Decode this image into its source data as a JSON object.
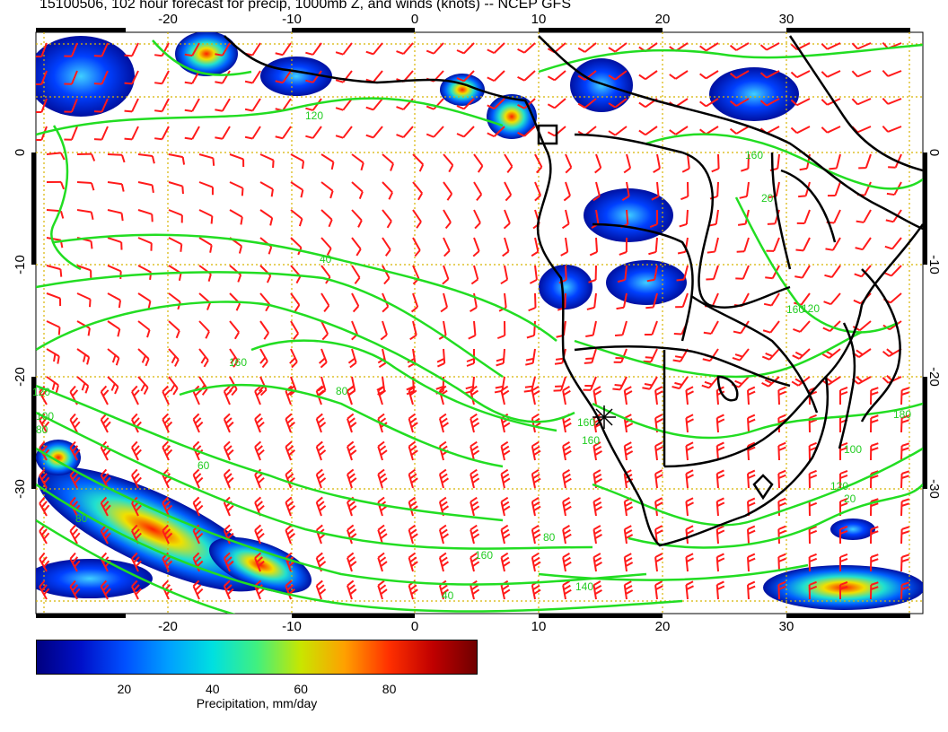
{
  "title": "15100506, 102 hour forecast for precip, 1000mb Z, and winds (knots) -- NCEP GFS",
  "map": {
    "lon_ticks": [
      "-20",
      "-10",
      "0",
      "10",
      "20",
      "30"
    ],
    "lat_ticks": [
      "0",
      "-10",
      "-20",
      "-30"
    ],
    "contour_labels": [
      "120",
      "40",
      "160",
      "80",
      "120",
      "100",
      "80",
      "60",
      "160",
      "160",
      "120",
      "80",
      "80",
      "160",
      "140",
      "40",
      "120",
      "100",
      "180",
      "160",
      "160",
      "20",
      "20"
    ],
    "colors": {
      "contour": "#22dd22",
      "barb": "#ff1a1a",
      "coast": "#000000",
      "grid": "#d8b400",
      "precip_low": "#000090",
      "precip_high": "#8b0000"
    }
  },
  "colorbar": {
    "labels": [
      "20",
      "40",
      "60",
      "80"
    ],
    "title": "Precipitation, mm/day",
    "range": [
      0,
      100
    ]
  }
}
